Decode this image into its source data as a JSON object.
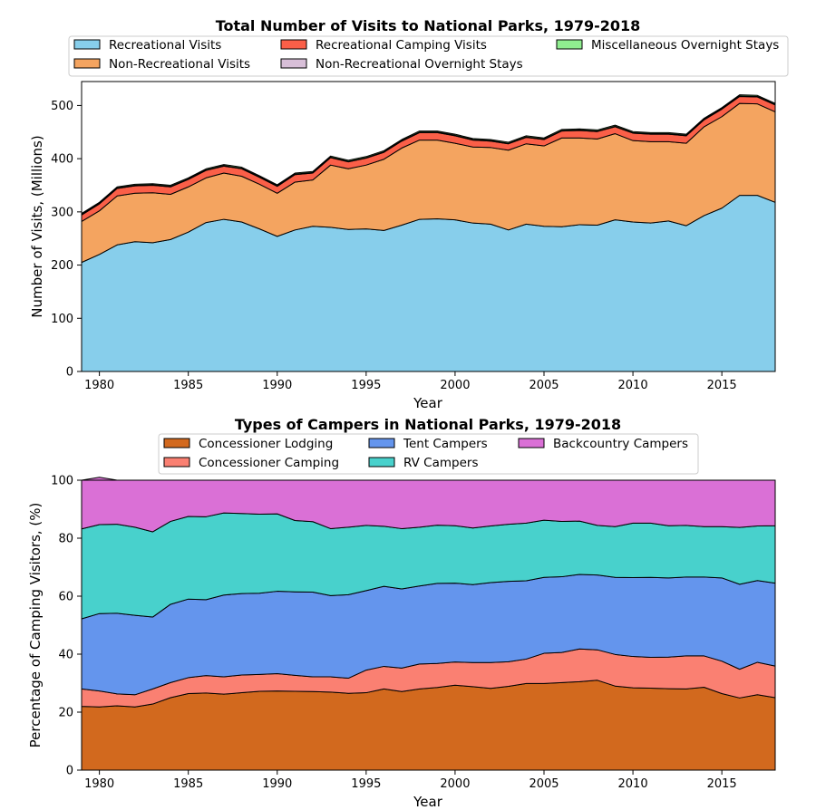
{
  "chart_data": [
    {
      "type": "area",
      "stacked": true,
      "title": "Total Number of Visits to National Parks, 1979-2018",
      "xlabel": "Year",
      "ylabel": "Number of Visits, (Millions)",
      "xlim": [
        1979,
        2018
      ],
      "ylim": [
        0,
        545
      ],
      "yticks": [
        0,
        100,
        200,
        300,
        400,
        500
      ],
      "xticks": [
        1980,
        1985,
        1990,
        1995,
        2000,
        2005,
        2010,
        2015
      ],
      "grid": false,
      "legend_position": "top-center",
      "x": [
        1979,
        1980,
        1981,
        1982,
        1983,
        1984,
        1985,
        1986,
        1987,
        1988,
        1989,
        1990,
        1991,
        1992,
        1993,
        1994,
        1995,
        1996,
        1997,
        1998,
        1999,
        2000,
        2001,
        2002,
        2003,
        2004,
        2005,
        2006,
        2007,
        2008,
        2009,
        2010,
        2011,
        2012,
        2013,
        2014,
        2015,
        2016,
        2017,
        2018
      ],
      "series": [
        {
          "name": "Recreational Visits",
          "color": "#87ceeb",
          "values": [
            205,
            220,
            238,
            244,
            242,
            248,
            262,
            280,
            286,
            281,
            268,
            254,
            266,
            273,
            271,
            267,
            268,
            265,
            275,
            286,
            287,
            285,
            279,
            277,
            266,
            277,
            273,
            272,
            276,
            275,
            285,
            281,
            279,
            283,
            274,
            293,
            307,
            331,
            331,
            318
          ]
        },
        {
          "name": "Non-Recreational Visits",
          "color": "#f4a460",
          "values": [
            77,
            82,
            92,
            91,
            94,
            85,
            85,
            84,
            87,
            86,
            84,
            81,
            90,
            87,
            117,
            114,
            120,
            134,
            145,
            149,
            148,
            144,
            143,
            144,
            150,
            151,
            151,
            167,
            163,
            162,
            162,
            153,
            153,
            149,
            155,
            167,
            172,
            173,
            172,
            170
          ]
        },
        {
          "name": "Recreational Camping Visits",
          "color": "#fa5f48",
          "values": [
            12,
            13,
            14,
            14,
            14,
            14,
            14,
            14,
            13,
            14,
            13,
            13,
            14,
            13,
            14,
            13,
            13,
            13,
            13,
            14,
            14,
            14,
            13,
            12,
            12,
            12,
            12,
            13,
            14,
            14,
            13,
            14,
            14,
            14,
            14,
            13,
            14,
            13,
            13,
            13
          ]
        },
        {
          "name": "Non-Recreational Overnight Stays",
          "color": "#d8bfd8",
          "values": [
            1,
            1,
            1,
            1,
            1,
            1,
            1,
            1,
            1,
            1,
            1,
            1,
            1,
            1,
            1,
            1,
            1,
            1,
            1,
            1,
            1,
            1,
            1,
            1,
            1,
            1,
            1,
            1,
            1,
            1,
            1,
            1,
            1,
            1,
            1,
            1,
            1,
            1,
            1,
            1
          ]
        },
        {
          "name": "Miscellaneous Overnight Stays",
          "color": "#90ee90",
          "values": [
            2,
            2,
            2,
            2,
            2,
            2,
            2,
            2,
            2,
            2,
            2,
            2,
            2,
            2,
            2,
            2,
            2,
            2,
            2,
            2,
            2,
            2,
            2,
            2,
            2,
            2,
            2,
            2,
            2,
            2,
            2,
            2,
            2,
            2,
            2,
            2,
            2,
            2,
            2,
            2
          ]
        }
      ]
    },
    {
      "type": "area",
      "stacked": true,
      "title": "Types of Campers in National Parks, 1979-2018",
      "xlabel": "Year",
      "ylabel": "Percentage of Camping Visitors, (%)",
      "xlim": [
        1979,
        2018
      ],
      "ylim": [
        0,
        100
      ],
      "yticks": [
        0,
        20,
        40,
        60,
        80,
        100
      ],
      "xticks": [
        1980,
        1985,
        1990,
        1995,
        2000,
        2005,
        2010,
        2015
      ],
      "grid": false,
      "legend_position": "top-center",
      "x": [
        1979,
        1980,
        1981,
        1982,
        1983,
        1984,
        1985,
        1986,
        1987,
        1988,
        1989,
        1990,
        1991,
        1992,
        1993,
        1994,
        1995,
        1996,
        1997,
        1998,
        1999,
        2000,
        2001,
        2002,
        2003,
        2004,
        2005,
        2006,
        2007,
        2008,
        2009,
        2010,
        2011,
        2012,
        2013,
        2014,
        2015,
        2016,
        2017,
        2018
      ],
      "series": [
        {
          "name": "Concessioner Lodging",
          "color": "#d2691e",
          "values": [
            22,
            21.8,
            22.2,
            21.8,
            22.8,
            25,
            26.4,
            26.6,
            26.2,
            26.7,
            27.2,
            27.3,
            27.2,
            27.1,
            26.9,
            26.5,
            26.7,
            28,
            27.1,
            28,
            28.5,
            29.3,
            28.8,
            28.2,
            28.9,
            29.9,
            29.9,
            30.2,
            30.5,
            31,
            29,
            28.4,
            28.3,
            28.1,
            28,
            28.6,
            26.4,
            24.9,
            26,
            25
          ]
        },
        {
          "name": "Concessioner Camping",
          "color": "#fa8072",
          "values": [
            6,
            5.5,
            4.1,
            4.2,
            5.2,
            5.2,
            5.5,
            6,
            6,
            6.1,
            5.8,
            6,
            5.5,
            5.1,
            5.3,
            5.2,
            7.8,
            7.8,
            8.1,
            8.6,
            8.3,
            8,
            8.3,
            8.9,
            8.5,
            8.4,
            10.4,
            10.4,
            11.3,
            10.5,
            10.9,
            10.8,
            10.6,
            10.9,
            11.4,
            10.8,
            11.2,
            9.9,
            11.2,
            10.9
          ]
        },
        {
          "name": "Tent Campers",
          "color": "#6495ed",
          "values": [
            24.2,
            26.7,
            27.8,
            27.4,
            24.8,
            27,
            27.1,
            26.2,
            28.2,
            28.1,
            28,
            28.4,
            28.8,
            29.2,
            28,
            28.8,
            27.4,
            27.6,
            27.3,
            26.9,
            27.6,
            27.2,
            26.9,
            27.6,
            27.7,
            27,
            26.2,
            26.1,
            25.7,
            25.8,
            26.6,
            27.2,
            27.6,
            27.3,
            27.2,
            27.2,
            28.7,
            29.3,
            28.2,
            28.6
          ]
        },
        {
          "name": "RV Campers",
          "color": "#48d1cc",
          "values": [
            31,
            30.7,
            30.7,
            30.4,
            29.4,
            28.6,
            28.5,
            28.6,
            28.3,
            27.6,
            27.3,
            26.7,
            24.6,
            24.3,
            23.1,
            23.3,
            22.5,
            20.7,
            20.8,
            20.3,
            20.1,
            19.8,
            19.5,
            19.5,
            19.7,
            19.9,
            19.7,
            19.1,
            18.4,
            17.1,
            17.5,
            18.8,
            18.7,
            18,
            17.8,
            17.4,
            17.7,
            19.6,
            18.8,
            19.8
          ]
        },
        {
          "name": "Backcountry Campers",
          "color": "#da70d6",
          "values": [
            16.8,
            16.3,
            15.2,
            16.2,
            17.8,
            14.2,
            12.5,
            12.6,
            11.3,
            11.5,
            11.7,
            11.6,
            13.9,
            14.3,
            16.7,
            16.2,
            15.6,
            15.9,
            16.7,
            16.2,
            15.5,
            15.7,
            16.5,
            15.8,
            15.2,
            14.8,
            13.8,
            14.2,
            14.1,
            15.6,
            16,
            14.8,
            14.8,
            15.7,
            15.6,
            16,
            16,
            16.3,
            15.8,
            15.7
          ]
        }
      ]
    }
  ]
}
